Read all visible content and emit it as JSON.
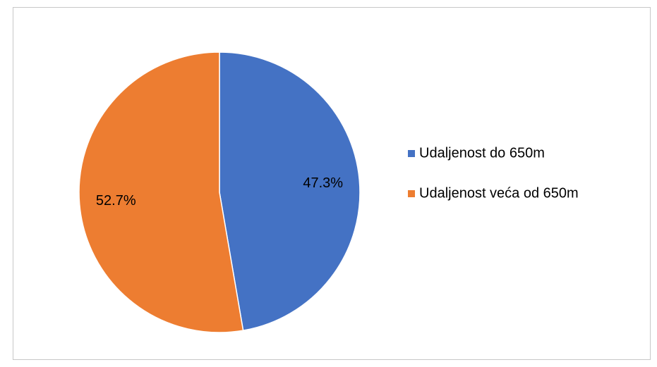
{
  "chart_data": {
    "type": "pie",
    "categories": [
      "Udaljenost do 650m",
      "Udaljenost veća od 650m"
    ],
    "values": [
      47.3,
      52.7
    ],
    "value_labels": [
      "47.3%",
      "52.7%"
    ],
    "colors": [
      "#4472c4",
      "#ed7d31"
    ],
    "legend": "right"
  }
}
